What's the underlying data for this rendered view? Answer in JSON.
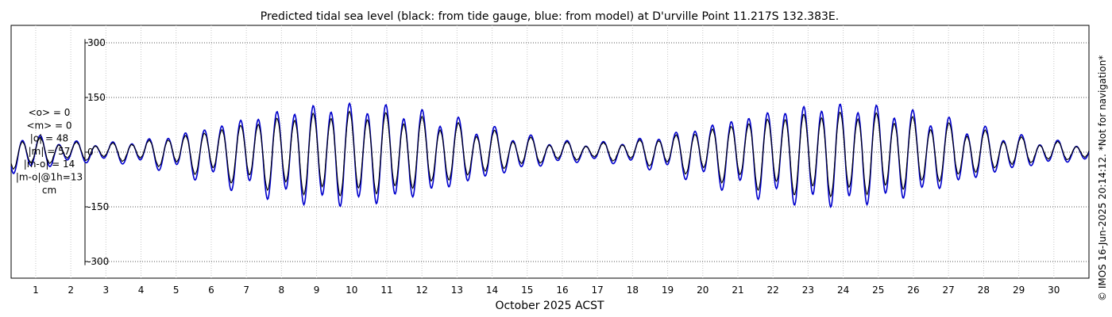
{
  "chart_data": {
    "type": "line",
    "title": "Predicted tidal sea level (black: from tide gauge, blue: from model) at D'urville Point 11.217S 132.383E.",
    "xlabel": "October 2025 ACST",
    "ylabel": "",
    "ylim": [
      -300,
      300
    ],
    "yticks": [
      300,
      150,
      0,
      -150,
      -300
    ],
    "yticklabels": [
      "300",
      "150",
      "0",
      "-150",
      "-300"
    ],
    "xlim": [
      0.3,
      31.0
    ],
    "xticks": [
      1,
      2,
      3,
      4,
      5,
      6,
      7,
      8,
      9,
      10,
      11,
      12,
      13,
      14,
      15,
      16,
      17,
      18,
      19,
      20,
      21,
      22,
      23,
      24,
      25,
      26,
      27,
      28,
      29,
      30
    ],
    "xticklabels": [
      "1",
      "2",
      "3",
      "4",
      "5",
      "6",
      "7",
      "8",
      "9",
      "10",
      "11",
      "12",
      "13",
      "14",
      "15",
      "16",
      "17",
      "18",
      "19",
      "20",
      "21",
      "22",
      "23",
      "24",
      "25",
      "26",
      "27",
      "28",
      "29",
      "30"
    ],
    "grid": true,
    "series": [
      {
        "name": "tide gauge",
        "color": "#000000"
      },
      {
        "name": "model",
        "color": "#0000cc"
      }
    ],
    "tide_constituents": {
      "M2_period_days": 0.5175,
      "spring_days": [
        9.8,
        23.7
      ],
      "neap_days": [
        1.9,
        15.5,
        28.9
      ],
      "spring_low_cm": -150,
      "spring_high_cm": 135,
      "neap_amplitude_cm": 25
    },
    "stats": [
      "<o> = 0",
      "<m> = 0",
      "|o| = 48",
      "|m| = 57",
      "|m-o| = 14",
      "|m-o|@1h=13",
      "cm"
    ],
    "credit": "© IMOS 16-Jun-2025 20:14:12. *Not for navigation*"
  }
}
